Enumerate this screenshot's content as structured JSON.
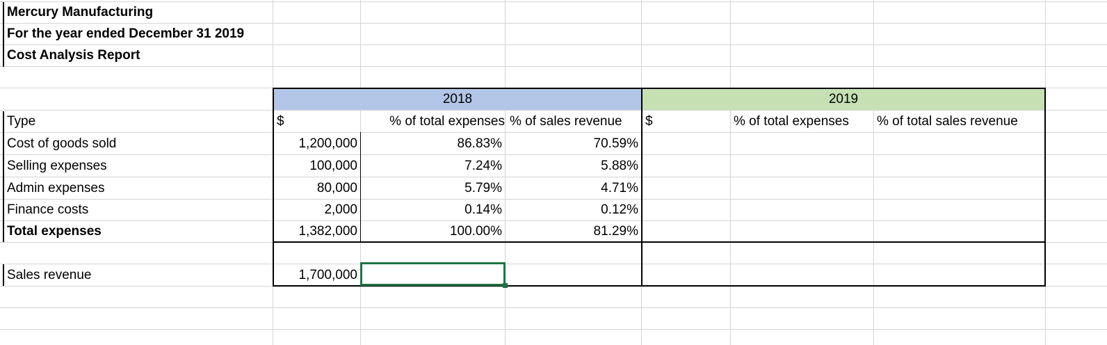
{
  "report": {
    "company": "Mercury Manufacturing",
    "period": "For the year ended December 31 2019",
    "title": "Cost Analysis Report"
  },
  "years": {
    "y2018": "2018",
    "y2019": "2019"
  },
  "column_headers": {
    "type": "Type",
    "dollar_2018": "$",
    "pct_total_2018": "% of total expenses",
    "pct_sales_2018": "% of sales revenue",
    "dollar_2019": "$",
    "pct_total_2019": "% of total expenses",
    "pct_sales_2019": "% of total sales revenue"
  },
  "rows": [
    {
      "type": "Cost of goods sold",
      "amount": "1,200,000",
      "pct_total": "86.83%",
      "pct_sales": "70.59%"
    },
    {
      "type": "Selling expenses",
      "amount": "100,000",
      "pct_total": "7.24%",
      "pct_sales": "5.88%"
    },
    {
      "type": "Admin expenses",
      "amount": "80,000",
      "pct_total": "5.79%",
      "pct_sales": "4.71%"
    },
    {
      "type": "Finance costs",
      "amount": "2,000",
      "pct_total": "0.14%",
      "pct_sales": "0.12%"
    },
    {
      "type": "Total expenses",
      "amount": "1,382,000",
      "pct_total": "100.00%",
      "pct_sales": "81.29%"
    }
  ],
  "sales": {
    "label": "Sales revenue",
    "amount": "1,700,000"
  },
  "colors": {
    "header_2018": "#b4c6e7",
    "header_2019": "#c6e0b4",
    "selection": "#217346",
    "gridline": "#d4d4d4"
  }
}
